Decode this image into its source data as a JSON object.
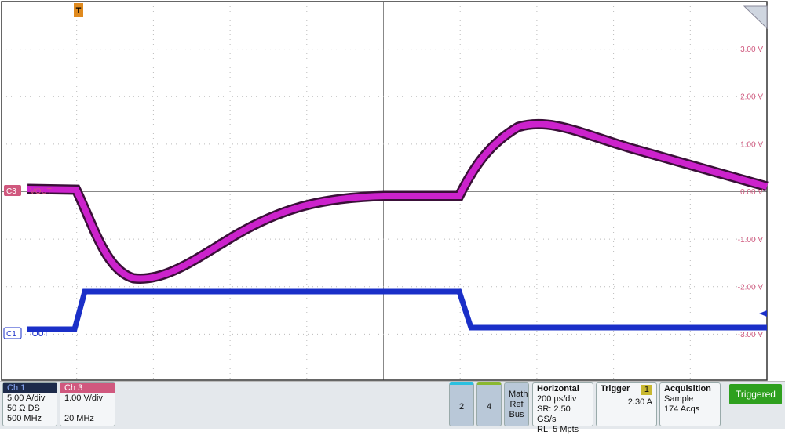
{
  "plot": {
    "trigger_marker": "T",
    "scale_labels": [
      "3.00 V",
      "2.00 V",
      "1.00 V",
      "0.00 V",
      "-1.00 V",
      "-2.00 V",
      "-3.00 V"
    ],
    "channels": [
      {
        "tag": "C3",
        "label": "VOUT"
      },
      {
        "tag": "C1",
        "label": "IOUT"
      }
    ]
  },
  "status_bar": {
    "ch1": {
      "title": "Ch 1",
      "lines": [
        "5.00 A/div",
        "50 Ω  DS",
        "500 MHz"
      ]
    },
    "ch3": {
      "title": "Ch 3",
      "lines": [
        "1.00 V/div",
        "20 MHz"
      ]
    },
    "buttons": [
      "2",
      "4"
    ],
    "math_ref_bus": [
      "Math",
      "Ref",
      "Bus"
    ],
    "horizontal": {
      "title": "Horizontal",
      "lines": [
        "200 µs/div",
        "SR: 2.50 GS/s",
        "RL: 5 Mpts"
      ]
    },
    "trigger": {
      "title": "Trigger",
      "source": "1",
      "level": "2.30 A"
    },
    "acquisition": {
      "title": "Acquisition",
      "lines": [
        "Sample",
        "174 Acqs"
      ]
    },
    "state": "Triggered"
  }
}
